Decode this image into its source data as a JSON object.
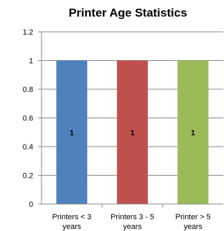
{
  "chart_data": {
    "type": "bar",
    "title": "Printer Age Statistics",
    "xlabel": "",
    "ylabel": "",
    "categories": [
      [
        "Printers < 3",
        "years"
      ],
      [
        "Printers 3 - 5",
        "years"
      ],
      [
        "Printer > 5",
        "years"
      ]
    ],
    "values": [
      1,
      1,
      1
    ],
    "data_labels": [
      "1",
      "1",
      "1"
    ],
    "bar_colors": [
      "#4f81bd",
      "#c0504d",
      "#9bbb59"
    ],
    "ylim": [
      0,
      1.2
    ],
    "yticks": [
      "0",
      "0.2",
      "0.4",
      "0.6",
      "0.8",
      "1",
      "1.2"
    ],
    "grid": true,
    "legend": "none"
  }
}
